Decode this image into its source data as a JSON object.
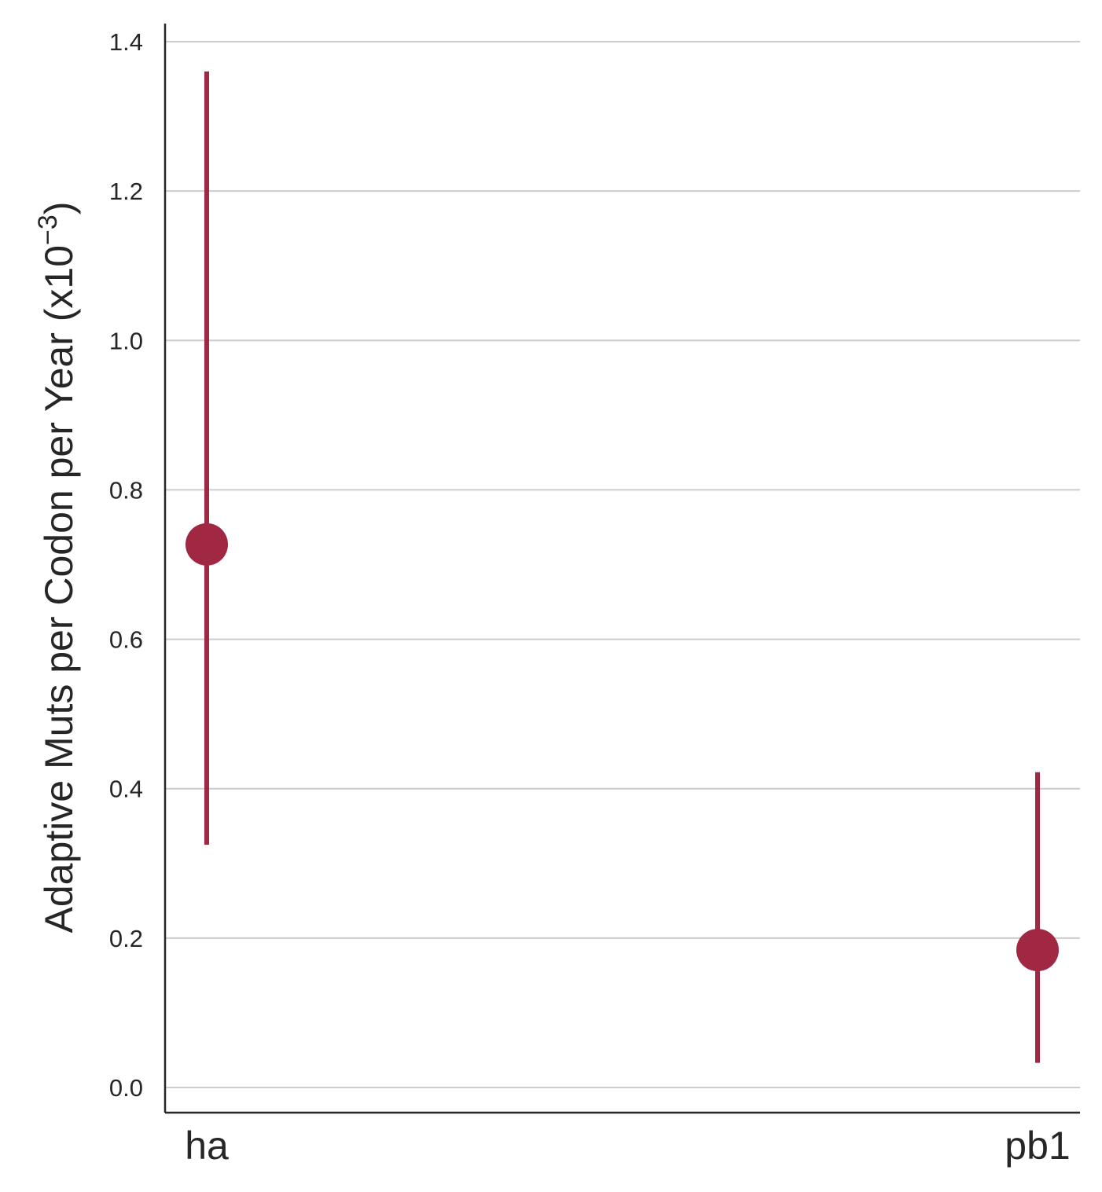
{
  "chart_data": {
    "type": "pointrange",
    "categories": [
      "ha",
      "pb1"
    ],
    "series": [
      {
        "values": [
          0.727,
          0.184
        ],
        "lower": [
          0.325,
          0.033
        ],
        "upper": [
          1.36,
          0.422
        ]
      }
    ],
    "title": "",
    "xlabel": "",
    "ylabel": "Adaptive Muts per Codon per Year (x10",
    "ylabel_exponent": "−3",
    "ylabel_close": ")",
    "ylim": [
      -0.07,
      1.43
    ],
    "yticks": [
      0.0,
      0.2,
      0.4,
      0.6,
      0.8,
      1.0,
      1.2,
      1.4
    ],
    "ytick_labels": [
      "0.0",
      "0.2",
      "0.4",
      "0.6",
      "0.8",
      "1.0",
      "1.2",
      "1.4"
    ],
    "grid": "horizontal",
    "legend": "none",
    "color": "#A02843",
    "grid_color": "#CCCCCC",
    "axis_color": "#262626"
  }
}
